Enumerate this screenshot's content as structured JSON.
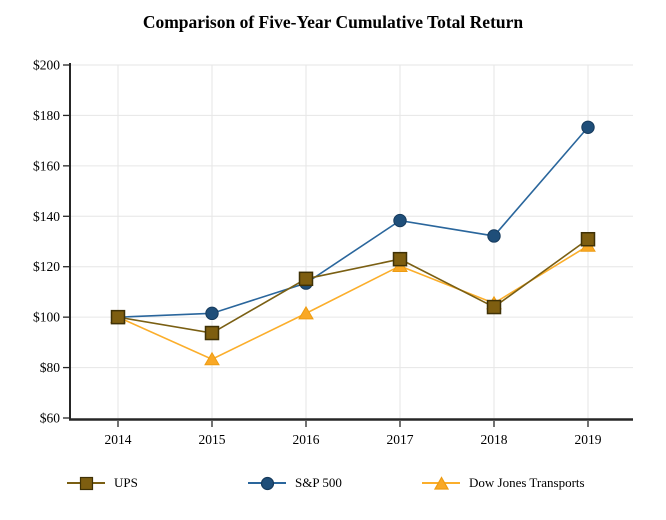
{
  "chart_data": {
    "type": "line",
    "title": "Comparison of Five-Year Cumulative Total Return",
    "categories": [
      "2014",
      "2015",
      "2016",
      "2017",
      "2018",
      "2019"
    ],
    "series": [
      {
        "name": "UPS",
        "slug": "ups",
        "marker": "square",
        "line_color": "#7A5F13",
        "marker_fill": "#7E5E10",
        "marker_edge": "#3F3106",
        "values": [
          100,
          93.7,
          115.2,
          123.0,
          104.0,
          130.9
        ]
      },
      {
        "name": "S&P 500",
        "slug": "sp-500",
        "marker": "circle",
        "line_color": "#2A669C",
        "marker_fill": "#1F4E79",
        "marker_edge": "#163A5C",
        "values": [
          100,
          101.5,
          113.5,
          138.3,
          132.2,
          175.3
        ]
      },
      {
        "name": "Dow Jones Transports",
        "slug": "dow-jones-transports",
        "marker": "triangle",
        "line_color": "#FBAE2B",
        "marker_fill": "#F9A825",
        "marker_edge": "#ED9C13",
        "values": [
          100,
          83.3,
          101.5,
          120.3,
          105.5,
          128.3
        ]
      }
    ],
    "x_axis": {
      "label": "",
      "tick_labels": [
        "2014",
        "2015",
        "2016",
        "2017",
        "2018",
        "2019"
      ]
    },
    "y_axis": {
      "label": "",
      "min": 60,
      "max": 200,
      "step": 20,
      "prefix": "$",
      "tick_labels": [
        "$60",
        "$80",
        "$100",
        "$120",
        "$140",
        "$160",
        "$180",
        "$200"
      ]
    },
    "grid": true,
    "legend_position": "bottom",
    "draw_order": [
      "S&P 500",
      "Dow Jones Transports",
      "UPS"
    ],
    "colors": {
      "axis": "#262626",
      "grid": "#E6E6E6",
      "text": "#000000",
      "background": "#FFFFFF"
    }
  }
}
